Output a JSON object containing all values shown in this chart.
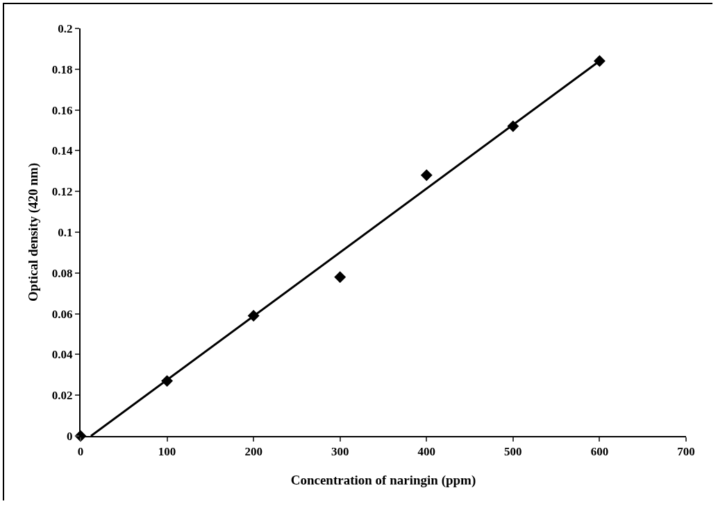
{
  "chart_data": {
    "type": "scatter",
    "xlabel": "Concentration of naringin (ppm)",
    "ylabel": "Optical density (420 nm)",
    "x": [
      0,
      100,
      200,
      300,
      400,
      500,
      600
    ],
    "series": [
      {
        "color": "#000000",
        "marker": "diamond",
        "values": [
          0,
          0.027,
          0.059,
          0.078,
          0.128,
          0.152,
          0.184
        ]
      },
      {
        "type": "line",
        "color": "#000000",
        "marker": "none",
        "line_style": "solid",
        "x": [
          12,
          600
        ],
        "values": [
          0,
          0.184
        ]
      }
    ],
    "xlim": [
      0,
      700
    ],
    "xticks": [
      0,
      100,
      200,
      300,
      400,
      500,
      600,
      700
    ],
    "ylim": [
      0,
      0.2
    ],
    "yticks": [
      0,
      0.02,
      0.04,
      0.06,
      0.08,
      0.1,
      0.12,
      0.14,
      0.16,
      0.18,
      0.2
    ],
    "grid": false,
    "legend": false
  }
}
